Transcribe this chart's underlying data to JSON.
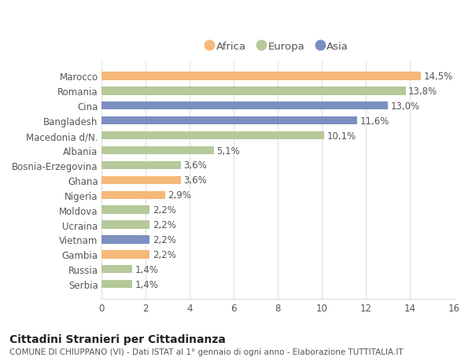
{
  "categories": [
    "Serbia",
    "Russia",
    "Gambia",
    "Vietnam",
    "Ucraina",
    "Moldova",
    "Nigeria",
    "Ghana",
    "Bosnia-Erzegovina",
    "Albania",
    "Macedonia d/N.",
    "Bangladesh",
    "Cina",
    "Romania",
    "Marocco"
  ],
  "values": [
    1.4,
    1.4,
    2.2,
    2.2,
    2.2,
    2.2,
    2.9,
    3.6,
    3.6,
    5.1,
    10.1,
    11.6,
    13.0,
    13.8,
    14.5
  ],
  "labels": [
    "1,4%",
    "1,4%",
    "2,2%",
    "2,2%",
    "2,2%",
    "2,2%",
    "2,9%",
    "3,6%",
    "3,6%",
    "5,1%",
    "10,1%",
    "11,6%",
    "13,0%",
    "13,8%",
    "14,5%"
  ],
  "colors": [
    "#b5c99a",
    "#b5c99a",
    "#f5b97a",
    "#7b8fc0",
    "#b5c99a",
    "#b5c99a",
    "#f5b97a",
    "#f5b97a",
    "#b5c99a",
    "#b5c99a",
    "#b5c99a",
    "#7b8fc0",
    "#7b8fc0",
    "#b5c99a",
    "#f5b97a"
  ],
  "legend_labels": [
    "Africa",
    "Europa",
    "Asia"
  ],
  "legend_colors": [
    "#f5b97a",
    "#b5c99a",
    "#7b8fc0"
  ],
  "title": "Cittadini Stranieri per Cittadinanza",
  "subtitle": "COMUNE DI CHIUPPANO (VI) - Dati ISTAT al 1° gennaio di ogni anno - Elaborazione TUTTITALIA.IT",
  "xlim": [
    0,
    16
  ],
  "xticks": [
    0,
    2,
    4,
    6,
    8,
    10,
    12,
    14,
    16
  ],
  "bg_color": "#ffffff",
  "plot_bg_color": "#ffffff",
  "bar_height": 0.55,
  "label_fontsize": 8.5,
  "tick_fontsize": 8.5,
  "title_fontsize": 10,
  "subtitle_fontsize": 7.5,
  "grid_color": "#e0e0e0",
  "text_color": "#555555",
  "label_color": "#555555"
}
